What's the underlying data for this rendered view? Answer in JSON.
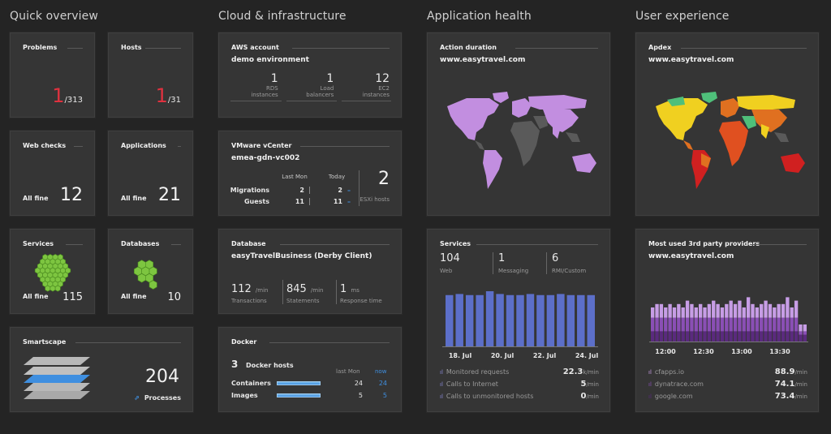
{
  "columns": {
    "quick": "Quick overview",
    "cloud": "Cloud & infrastructure",
    "app": "Application health",
    "ux": "User experience"
  },
  "problems": {
    "title": "Problems",
    "value": "1",
    "total": "/313"
  },
  "hosts": {
    "title": "Hosts",
    "value": "1",
    "total": "/31"
  },
  "webchecks": {
    "title": "Web checks",
    "status": "All fine",
    "value": "12"
  },
  "applications": {
    "title": "Applications",
    "status": "All fine",
    "value": "21"
  },
  "services": {
    "title": "Services",
    "status": "All fine",
    "value": "115"
  },
  "databases": {
    "title": "Databases",
    "status": "All fine",
    "value": "10"
  },
  "smartscape": {
    "title": "Smartscape",
    "value": "204",
    "label": "Processes"
  },
  "aws": {
    "title": "AWS account",
    "subtitle": "demo environment",
    "stats": [
      {
        "value": "1",
        "label1": "RDS",
        "label2": "instances"
      },
      {
        "value": "1",
        "label1": "Load",
        "label2": "balancers"
      },
      {
        "value": "12",
        "label1": "EC2",
        "label2": "instances"
      }
    ]
  },
  "vmware": {
    "title": "VMware vCenter",
    "subtitle": "emea-gdn-vc002",
    "col_last": "Last Mon",
    "col_today": "Today",
    "rows": [
      {
        "label": "Migrations",
        "last": "2",
        "today": "2"
      },
      {
        "label": "Guests",
        "last": "11",
        "today": "11"
      }
    ],
    "esxi_value": "2",
    "esxi_label": "ESXi hosts"
  },
  "database": {
    "title": "Database",
    "subtitle": "easyTravelBusiness (Derby Client)",
    "stats": [
      {
        "value": "112",
        "unit": "/min",
        "label": "Transactions"
      },
      {
        "value": "845",
        "unit": "/min",
        "label": "Statements"
      },
      {
        "value": "1",
        "unit": "ms",
        "label": "Response time"
      }
    ]
  },
  "docker": {
    "title": "Docker",
    "hosts_value": "3",
    "hosts_label": "Docker hosts",
    "col_last": "last Mon",
    "col_now": "now",
    "rows": [
      {
        "label": "Containers",
        "last": "24",
        "now": "24"
      },
      {
        "label": "Images",
        "last": "5",
        "now": "5"
      }
    ]
  },
  "action_duration": {
    "title": "Action duration",
    "subtitle": "www.easytravel.com"
  },
  "apdex": {
    "title": "Apdex",
    "subtitle": "www.easytravel.com"
  },
  "services_chart": {
    "title": "Services",
    "top": [
      {
        "value": "104",
        "label": "Web"
      },
      {
        "value": "1",
        "label": "Messaging"
      },
      {
        "value": "6",
        "label": "RMI/Custom"
      }
    ],
    "rows": [
      {
        "label": "Monitored requests",
        "value": "22.3",
        "unit": "k/min"
      },
      {
        "label": "Calls to Internet",
        "value": "5",
        "unit": "/min"
      },
      {
        "label": "Calls to unmonitored hosts",
        "value": "0",
        "unit": "/min"
      }
    ],
    "bar_color": "#5c6fc9"
  },
  "thirdparty": {
    "title": "Most used 3rd party providers",
    "subtitle": "www.easytravel.com",
    "rows": [
      {
        "label": "cfapps.io",
        "value": "88.9",
        "unit": "/min",
        "color": "#c79de6"
      },
      {
        "label": "dynatrace.com",
        "value": "74.1",
        "unit": "/min",
        "color": "#8a4fb5"
      },
      {
        "label": "google.com",
        "value": "73.4",
        "unit": "/min",
        "color": "#5a2a7e"
      }
    ]
  },
  "chart_data": [
    {
      "type": "bar",
      "title": "Services",
      "categories": [
        "18. Jul",
        "",
        "",
        "",
        "20. Jul",
        "",
        "",
        "",
        "22. Jul",
        "",
        "",
        "",
        "24. Jul",
        "",
        ""
      ],
      "x_ticks": [
        "18. Jul",
        "20. Jul",
        "22. Jul",
        "24. Jul"
      ],
      "values": [
        0.93,
        0.95,
        0.93,
        0.93,
        1.0,
        0.95,
        0.93,
        0.93,
        0.95,
        0.93,
        0.93,
        0.95,
        0.93,
        0.93,
        0.93
      ],
      "ylim": [
        0,
        1
      ]
    },
    {
      "type": "bar",
      "title": "Most used 3rd party providers",
      "x_ticks": [
        "12:00",
        "12:30",
        "13:00",
        "13:30"
      ],
      "series": [
        {
          "name": "cfapps.io",
          "values": [
            3,
            4,
            4,
            3,
            4,
            3,
            4,
            3,
            5,
            4,
            3,
            4,
            3,
            4,
            5,
            4,
            3,
            4,
            5,
            4,
            5,
            3,
            6,
            4,
            3,
            4,
            5,
            4,
            3,
            4,
            4,
            6,
            3,
            5,
            2,
            2
          ]
        },
        {
          "name": "dynatrace.com",
          "values": [
            4,
            4,
            4,
            4,
            4,
            4,
            4,
            4,
            4,
            4,
            4,
            4,
            4,
            4,
            4,
            4,
            4,
            4,
            4,
            4,
            4,
            4,
            4,
            4,
            4,
            4,
            4,
            4,
            4,
            4,
            4,
            4,
            4,
            4,
            1,
            1
          ]
        },
        {
          "name": "google.com",
          "values": [
            3,
            3,
            3,
            3,
            3,
            3,
            3,
            3,
            3,
            3,
            3,
            3,
            3,
            3,
            3,
            3,
            3,
            3,
            3,
            3,
            3,
            3,
            3,
            3,
            3,
            3,
            3,
            3,
            3,
            3,
            3,
            3,
            3,
            3,
            2,
            2
          ]
        }
      ]
    }
  ]
}
